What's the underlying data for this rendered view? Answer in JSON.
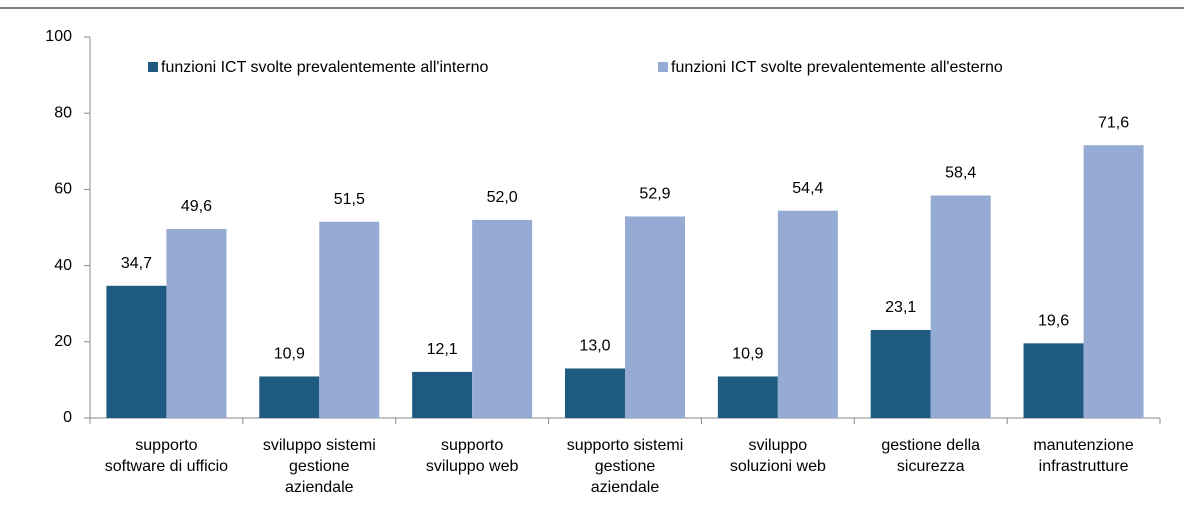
{
  "chart_data": {
    "type": "bar",
    "categories": [
      [
        "supporto",
        "software di ufficio"
      ],
      [
        "sviluppo  sistemi",
        "gestione",
        "aziendale"
      ],
      [
        "supporto",
        "sviluppo web"
      ],
      [
        "supporto sistemi",
        "gestione",
        "aziendale"
      ],
      [
        "sviluppo",
        "soluzioni web"
      ],
      [
        "gestione della",
        "sicurezza"
      ],
      [
        "manutenzione",
        "infrastrutture"
      ]
    ],
    "series": [
      {
        "name": "funzioni ICT svolte prevalentemente all'interno",
        "color": "#1f5a80",
        "values": [
          34.7,
          10.9,
          12.1,
          13.0,
          10.9,
          23.1,
          19.6
        ],
        "value_labels": [
          "34,7",
          "10,9",
          "12,1",
          "13,0",
          "10,9",
          "23,1",
          "19,6"
        ]
      },
      {
        "name": "funzioni ICT svolte prevalentemente all'esterno",
        "color": "#95abd4",
        "values": [
          49.6,
          51.5,
          52.0,
          52.9,
          54.4,
          58.4,
          71.6
        ],
        "value_labels": [
          "49,6",
          "51,5",
          "52,0",
          "52,9",
          "54,4",
          "58,4",
          "71,6"
        ]
      }
    ],
    "ylim": [
      0,
      100
    ],
    "yticks": [
      0,
      20,
      40,
      60,
      80,
      100
    ],
    "grid": false
  }
}
